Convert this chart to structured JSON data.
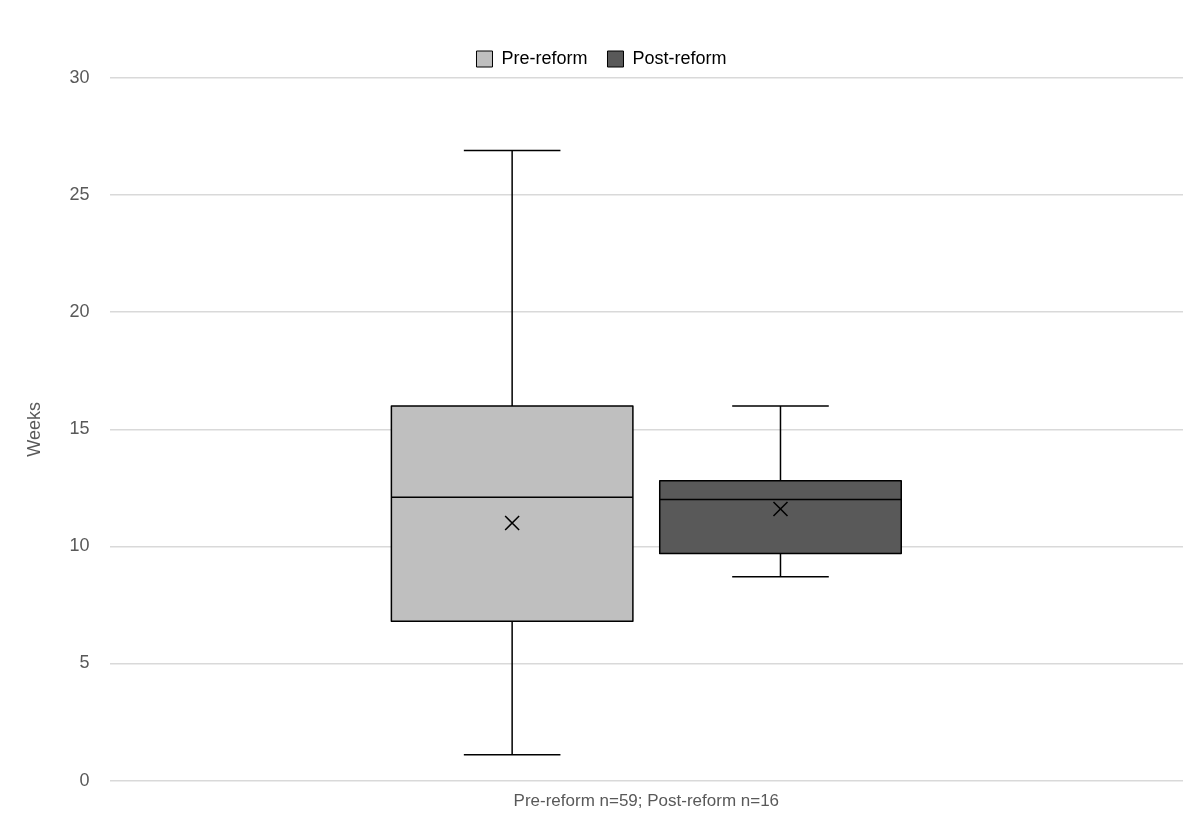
{
  "chart_data": {
    "type": "box",
    "ylabel": "Weeks",
    "categories": [
      "Pre-reform n=59; Post-reform n=16"
    ],
    "series": [
      {
        "name": "Pre-reform",
        "color": "#bfbfbf",
        "boxes": [
          {
            "low": 1.1,
            "q1": 6.8,
            "median": 12.1,
            "q3": 16,
            "high": 26.9,
            "mean": 11
          }
        ]
      },
      {
        "name": "Post-reform",
        "color": "#595959",
        "boxes": [
          {
            "low": 8.7,
            "q1": 9.7,
            "median": 12,
            "q3": 12.8,
            "high": 16,
            "mean": 11.6
          }
        ]
      }
    ],
    "ylim": [
      0,
      30
    ],
    "yticks": [
      0,
      5,
      10,
      15,
      20,
      25,
      30
    ],
    "grid": "y",
    "legend": "top"
  }
}
